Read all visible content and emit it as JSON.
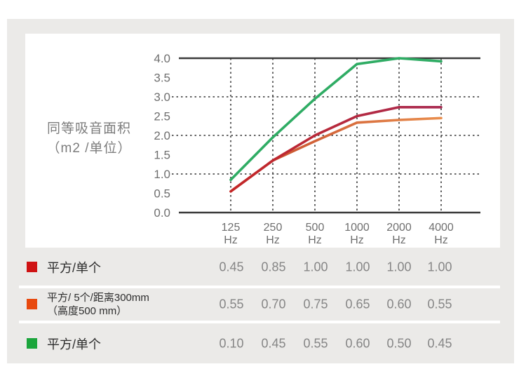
{
  "colors": {
    "panel_bg": "#ebeae8",
    "card_bg": "#ffffff",
    "axis": "#3a3a3a",
    "grid": "#4f4f4f",
    "tick_text": "#6f6f6f",
    "red_series": "#c62626",
    "orange_series": "#e2703a",
    "green_series": "#2fac64"
  },
  "y_axis_title": {
    "line1": "同等吸音面积",
    "line2": "（m2 /单位）"
  },
  "chart_data": {
    "type": "line",
    "title": "",
    "xlabel": "",
    "ylabel": "同等吸音面积（m2 /单位）",
    "categories": [
      "125",
      "250",
      "500",
      "1000",
      "2000",
      "4000"
    ],
    "x_unit": "Hz",
    "ylim": [
      0,
      4
    ],
    "ytick_step": 0.5,
    "ytick_labels": [
      "0.0",
      "0.5",
      "1.0",
      "1.5",
      "2.0",
      "2.5",
      "3.0",
      "3.5",
      "4.0"
    ],
    "gridlines_y": [
      1,
      2,
      3
    ],
    "grid_style": "dashed",
    "legend_position": "table-below",
    "series": [
      {
        "name": "平方/单个",
        "color_start": "#c42727",
        "color_end": "#a92b52",
        "values": [
          0.55,
          1.35,
          2.0,
          2.5,
          2.73,
          2.73
        ]
      },
      {
        "name": "平方/ 5个/距离300mm（高度500 mm）",
        "color_start": "#c2452a",
        "color_end": "#e98e4e",
        "values": [
          0.55,
          1.35,
          1.85,
          2.33,
          2.4,
          2.45
        ]
      },
      {
        "name": "平方/单个",
        "color": "#2fac64",
        "values": [
          0.85,
          1.95,
          2.95,
          3.85,
          4.0,
          3.92
        ]
      }
    ]
  },
  "table": {
    "rows": [
      {
        "swatch": "#cf1213",
        "label": "平方/单个",
        "label2": "",
        "values": [
          "0.45",
          "0.85",
          "1.00",
          "1.00",
          "1.00",
          "1.00"
        ]
      },
      {
        "swatch": "#e8490e",
        "label": "平方/ 5个/距离300mm",
        "label2": "（高度500 mm）",
        "values": [
          "0.55",
          "0.70",
          "0.75",
          "0.65",
          "0.60",
          "0.55"
        ]
      },
      {
        "swatch": "#1ba53c",
        "label": "平方/单个",
        "label2": "",
        "values": [
          "0.10",
          "0.45",
          "0.55",
          "0.60",
          "0.50",
          "0.45"
        ]
      }
    ]
  }
}
